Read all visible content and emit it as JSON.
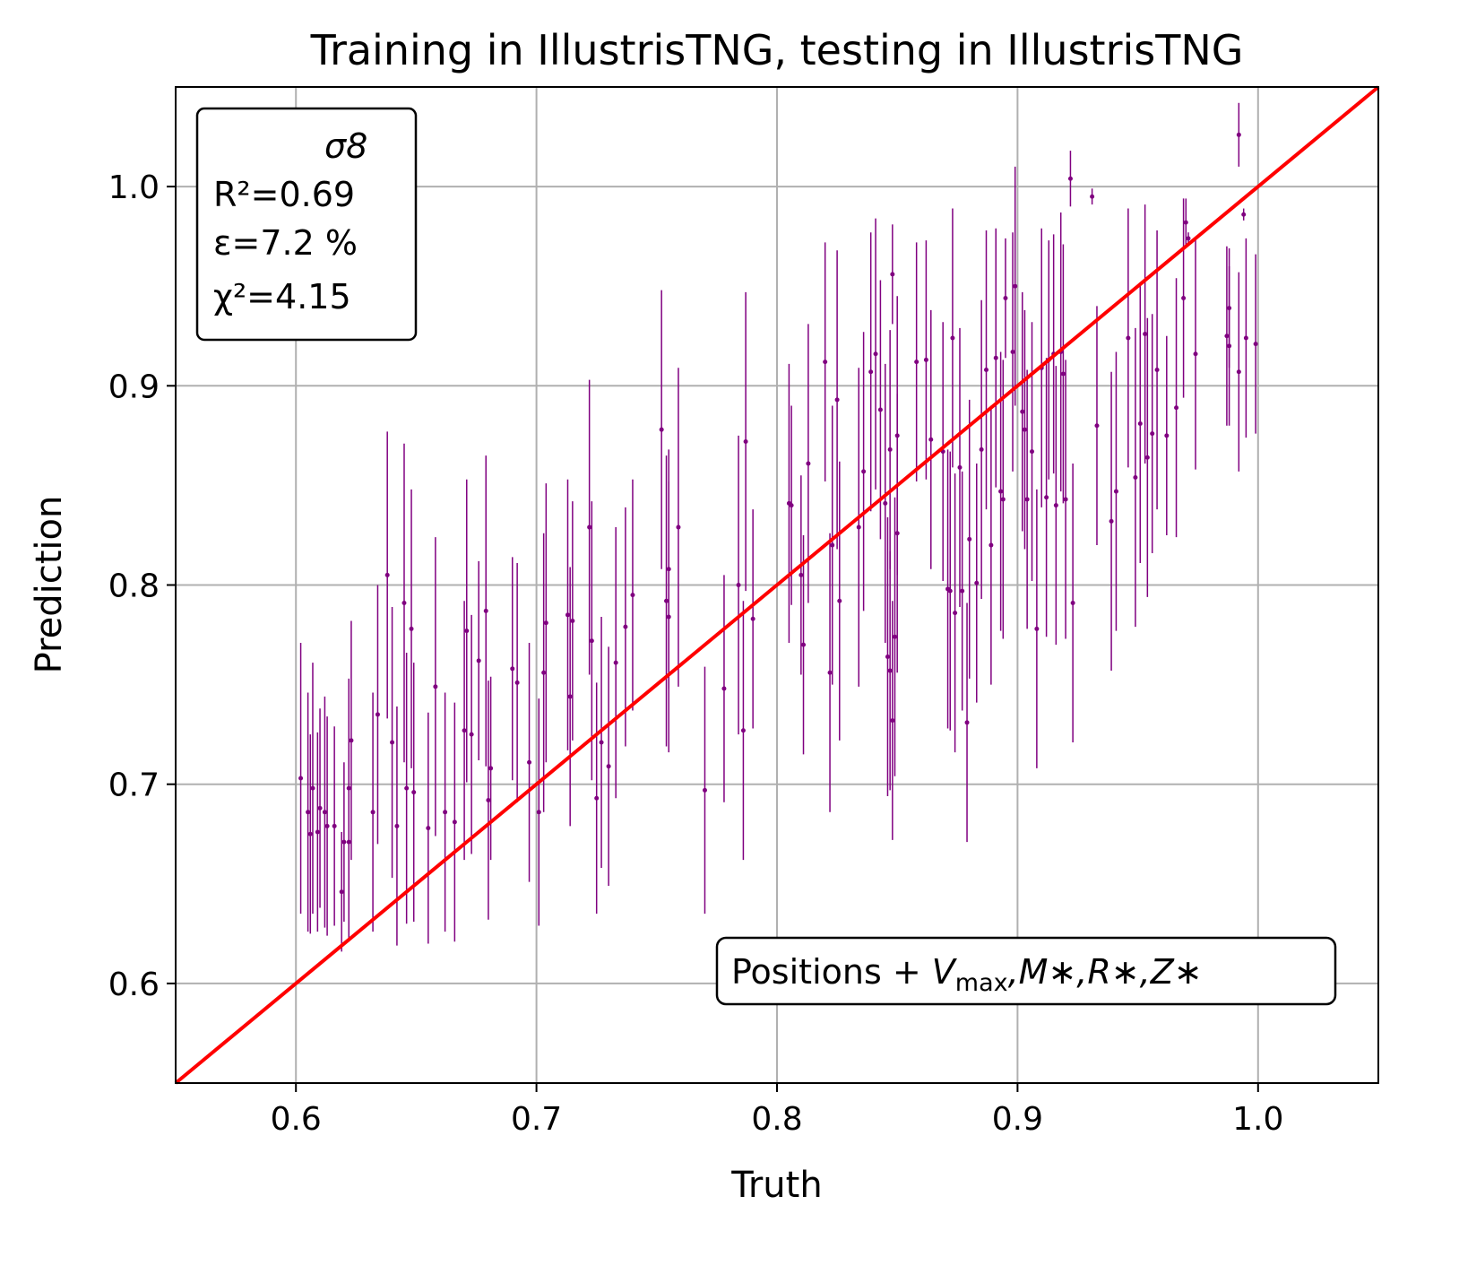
{
  "chart_data": {
    "type": "scatter",
    "title": "Training in IllustrisTNG, testing in IllustrisTNG",
    "xlabel": "Truth",
    "ylabel": "Prediction",
    "xlim": [
      0.55,
      1.05
    ],
    "ylim": [
      0.55,
      1.05
    ],
    "xticks": [
      "0.6",
      "0.7",
      "0.8",
      "0.9",
      "1.0"
    ],
    "yticks": [
      "0.6",
      "0.7",
      "0.8",
      "0.9",
      "1.0"
    ],
    "grid": true,
    "point_color": "#800080",
    "reference_line": {
      "from": [
        0.55,
        0.55
      ],
      "to": [
        1.05,
        1.05
      ],
      "color": "#ff0000"
    },
    "stats_box": {
      "parameter": "σ8",
      "r2": "R²=0.69",
      "epsilon": "ε=7.2 %",
      "chi2": "χ²=4.15",
      "placement": "top-left"
    },
    "annotation": {
      "prefix": "Positions + ",
      "v": "V",
      "v_sub": "max",
      "rest": ",M∗,R∗,Z∗",
      "placement": "bottom-right"
    },
    "points": [
      [
        0.602,
        0.703,
        0.068
      ],
      [
        0.605,
        0.686,
        0.06
      ],
      [
        0.606,
        0.675,
        0.05
      ],
      [
        0.607,
        0.698,
        0.063
      ],
      [
        0.609,
        0.676,
        0.05
      ],
      [
        0.61,
        0.688,
        0.05
      ],
      [
        0.612,
        0.686,
        0.058
      ],
      [
        0.613,
        0.679,
        0.055
      ],
      [
        0.616,
        0.679,
        0.05
      ],
      [
        0.619,
        0.646,
        0.03
      ],
      [
        0.62,
        0.671,
        0.04
      ],
      [
        0.622,
        0.671,
        0.05
      ],
      [
        0.622,
        0.698,
        0.055
      ],
      [
        0.623,
        0.722,
        0.06
      ],
      [
        0.632,
        0.686,
        0.06
      ],
      [
        0.634,
        0.735,
        0.065
      ],
      [
        0.638,
        0.805,
        0.072
      ],
      [
        0.64,
        0.721,
        0.068
      ],
      [
        0.642,
        0.679,
        0.06
      ],
      [
        0.645,
        0.791,
        0.08
      ],
      [
        0.646,
        0.698,
        0.068
      ],
      [
        0.648,
        0.778,
        0.07
      ],
      [
        0.649,
        0.696,
        0.065
      ],
      [
        0.655,
        0.678,
        0.058
      ],
      [
        0.658,
        0.749,
        0.075
      ],
      [
        0.662,
        0.686,
        0.06
      ],
      [
        0.666,
        0.681,
        0.06
      ],
      [
        0.67,
        0.727,
        0.065
      ],
      [
        0.671,
        0.777,
        0.076
      ],
      [
        0.673,
        0.725,
        0.06
      ],
      [
        0.676,
        0.762,
        0.05
      ],
      [
        0.679,
        0.787,
        0.078
      ],
      [
        0.68,
        0.692,
        0.06
      ],
      [
        0.681,
        0.708,
        0.046
      ],
      [
        0.69,
        0.758,
        0.056
      ],
      [
        0.692,
        0.751,
        0.06
      ],
      [
        0.697,
        0.711,
        0.06
      ],
      [
        0.701,
        0.686,
        0.057
      ],
      [
        0.703,
        0.756,
        0.07
      ],
      [
        0.704,
        0.781,
        0.07
      ],
      [
        0.713,
        0.785,
        0.068
      ],
      [
        0.714,
        0.744,
        0.065
      ],
      [
        0.715,
        0.782,
        0.06
      ],
      [
        0.722,
        0.829,
        0.074
      ],
      [
        0.723,
        0.772,
        0.07
      ],
      [
        0.725,
        0.693,
        0.058
      ],
      [
        0.727,
        0.721,
        0.063
      ],
      [
        0.73,
        0.709,
        0.06
      ],
      [
        0.733,
        0.761,
        0.068
      ],
      [
        0.737,
        0.779,
        0.06
      ],
      [
        0.74,
        0.795,
        0.058
      ],
      [
        0.752,
        0.878,
        0.07
      ],
      [
        0.754,
        0.792,
        0.073
      ],
      [
        0.755,
        0.784,
        0.068
      ],
      [
        0.755,
        0.808,
        0.06
      ],
      [
        0.759,
        0.829,
        0.08
      ],
      [
        0.77,
        0.697,
        0.062
      ],
      [
        0.778,
        0.748,
        0.057
      ],
      [
        0.784,
        0.8,
        0.075
      ],
      [
        0.786,
        0.727,
        0.065
      ],
      [
        0.787,
        0.872,
        0.075
      ],
      [
        0.79,
        0.783,
        0.055
      ],
      [
        0.805,
        0.841,
        0.07
      ],
      [
        0.806,
        0.84,
        0.05
      ],
      [
        0.81,
        0.805,
        0.05
      ],
      [
        0.811,
        0.77,
        0.055
      ],
      [
        0.813,
        0.861,
        0.07
      ],
      [
        0.82,
        0.912,
        0.06
      ],
      [
        0.822,
        0.756,
        0.07
      ],
      [
        0.823,
        0.82,
        0.07
      ],
      [
        0.825,
        0.893,
        0.075
      ],
      [
        0.826,
        0.792,
        0.07
      ],
      [
        0.834,
        0.829,
        0.08
      ],
      [
        0.836,
        0.857,
        0.07
      ],
      [
        0.839,
        0.907,
        0.07
      ],
      [
        0.841,
        0.916,
        0.068
      ],
      [
        0.843,
        0.888,
        0.065
      ],
      [
        0.845,
        0.841,
        0.07
      ],
      [
        0.846,
        0.764,
        0.07
      ],
      [
        0.847,
        0.757,
        0.06
      ],
      [
        0.847,
        0.868,
        0.06
      ],
      [
        0.848,
        0.732,
        0.06
      ],
      [
        0.848,
        0.956,
        0.025
      ],
      [
        0.849,
        0.774,
        0.07
      ],
      [
        0.85,
        0.826,
        0.07
      ],
      [
        0.85,
        0.875,
        0.07
      ],
      [
        0.858,
        0.912,
        0.06
      ],
      [
        0.862,
        0.913,
        0.06
      ],
      [
        0.864,
        0.873,
        0.065
      ],
      [
        0.869,
        0.867,
        0.065
      ],
      [
        0.871,
        0.798,
        0.07
      ],
      [
        0.872,
        0.797,
        0.07
      ],
      [
        0.873,
        0.924,
        0.065
      ],
      [
        0.874,
        0.786,
        0.07
      ],
      [
        0.876,
        0.859,
        0.07
      ],
      [
        0.877,
        0.797,
        0.06
      ],
      [
        0.879,
        0.731,
        0.06
      ],
      [
        0.88,
        0.823,
        0.07
      ],
      [
        0.883,
        0.801,
        0.06
      ],
      [
        0.885,
        0.868,
        0.075
      ],
      [
        0.887,
        0.908,
        0.07
      ],
      [
        0.889,
        0.82,
        0.07
      ],
      [
        0.891,
        0.914,
        0.065
      ],
      [
        0.893,
        0.847,
        0.07
      ],
      [
        0.894,
        0.843,
        0.07
      ],
      [
        0.895,
        0.944,
        0.03
      ],
      [
        0.898,
        0.917,
        0.06
      ],
      [
        0.899,
        0.95,
        0.06
      ],
      [
        0.902,
        0.887,
        0.06
      ],
      [
        0.903,
        0.878,
        0.06
      ],
      [
        0.904,
        0.843,
        0.065
      ],
      [
        0.906,
        0.867,
        0.065
      ],
      [
        0.908,
        0.778,
        0.07
      ],
      [
        0.91,
        0.909,
        0.07
      ],
      [
        0.912,
        0.844,
        0.07
      ],
      [
        0.913,
        0.913,
        0.06
      ],
      [
        0.915,
        0.916,
        0.06
      ],
      [
        0.916,
        0.84,
        0.07
      ],
      [
        0.918,
        0.917,
        0.07
      ],
      [
        0.919,
        0.906,
        0.065
      ],
      [
        0.92,
        0.843,
        0.07
      ],
      [
        0.922,
        1.004,
        0.014
      ],
      [
        0.923,
        0.791,
        0.07
      ],
      [
        0.931,
        0.995,
        0.004
      ],
      [
        0.933,
        0.88,
        0.06
      ],
      [
        0.939,
        0.832,
        0.075
      ],
      [
        0.941,
        0.847,
        0.07
      ],
      [
        0.946,
        0.924,
        0.065
      ],
      [
        0.949,
        0.854,
        0.075
      ],
      [
        0.951,
        0.881,
        0.07
      ],
      [
        0.953,
        0.926,
        0.065
      ],
      [
        0.954,
        0.864,
        0.07
      ],
      [
        0.956,
        0.876,
        0.06
      ],
      [
        0.958,
        0.908,
        0.07
      ],
      [
        0.962,
        0.875,
        0.05
      ],
      [
        0.966,
        0.889,
        0.065
      ],
      [
        0.969,
        0.944,
        0.05
      ],
      [
        0.97,
        0.982,
        0.012
      ],
      [
        0.971,
        0.974,
        0.003
      ],
      [
        0.974,
        0.916,
        0.058
      ],
      [
        0.987,
        0.925,
        0.045
      ],
      [
        0.988,
        0.92,
        0.04
      ],
      [
        0.988,
        0.939,
        0.03
      ],
      [
        0.992,
        0.907,
        0.05
      ],
      [
        0.992,
        1.026,
        0.016
      ],
      [
        0.994,
        0.986,
        0.003
      ],
      [
        0.995,
        0.924,
        0.05
      ],
      [
        0.999,
        0.921,
        0.045
      ]
    ]
  }
}
